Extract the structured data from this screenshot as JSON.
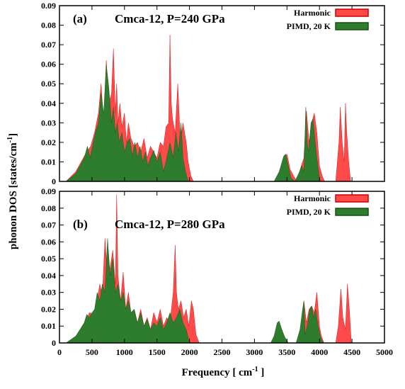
{
  "figure": {
    "ylabel": "phonon DOS [states/cm",
    "ylabel_sup": "-1",
    "ylabel_end": "]",
    "xlabel": "Frequency [ cm",
    "xlabel_sup": "-1",
    "xlabel_end": " ]"
  },
  "colors": {
    "harmonic": "#ff4a4a",
    "pimd": "#2e7d2e",
    "harmonic_edge": "#cc0000",
    "pimd_edge": "#145214"
  },
  "chart_data": [
    {
      "type": "area",
      "panel_label": "(a)",
      "title": "Cmca-12, P=240 GPa",
      "xlim": [
        0,
        5000
      ],
      "ylim": [
        0,
        0.09
      ],
      "xticks": [
        0,
        500,
        1000,
        1500,
        2000,
        2500,
        3000,
        3500,
        4000,
        4500,
        5000
      ],
      "yticks": [
        0,
        0.01,
        0.02,
        0.03,
        0.04,
        0.05,
        0.06,
        0.07,
        0.08,
        0.09
      ],
      "ytick_labels": [
        "0",
        "0.01",
        "0.02",
        "0.03",
        "0.04",
        "0.05",
        "0.06",
        "0.07",
        "0.08",
        "0.09"
      ],
      "legend_position": "top-right",
      "series": [
        {
          "name": "Harmonic",
          "x": [
            100,
            250,
            400,
            480,
            540,
            600,
            640,
            680,
            720,
            760,
            800,
            830,
            860,
            880,
            900,
            930,
            960,
            1000,
            1030,
            1060,
            1100,
            1150,
            1200,
            1250,
            1300,
            1350,
            1400,
            1450,
            1500,
            1550,
            1600,
            1640,
            1680,
            1700,
            1720,
            1740,
            1780,
            1820,
            1860,
            1900,
            1950,
            1980,
            2020,
            2060,
            3350,
            3450,
            3500,
            3550,
            3650,
            3720,
            3760,
            3800,
            3840,
            3880,
            3920,
            3960,
            4000,
            4040,
            4080,
            4250,
            4300,
            4320,
            4350,
            4380,
            4400,
            4420,
            4450,
            4480
          ],
          "values": [
            0,
            0.005,
            0.014,
            0.018,
            0.025,
            0.035,
            0.05,
            0.03,
            0.062,
            0.04,
            0.045,
            0.068,
            0.035,
            0.05,
            0.03,
            0.04,
            0.028,
            0.035,
            0.02,
            0.03,
            0.022,
            0.018,
            0.02,
            0.015,
            0.022,
            0.012,
            0.018,
            0.015,
            0.012,
            0.02,
            0.018,
            0.028,
            0.03,
            0.075,
            0.04,
            0.032,
            0.025,
            0.05,
            0.02,
            0.03,
            0.02,
            0.01,
            0.003,
            0,
            0,
            0.012,
            0.014,
            0.006,
            0,
            0.008,
            0.012,
            0.036,
            0.02,
            0.03,
            0.035,
            0.025,
            0.008,
            0.003,
            0,
            0,
            0.02,
            0.038,
            0.02,
            0.01,
            0.04,
            0.025,
            0.01,
            0
          ],
          "color": "#ff4a4a"
        },
        {
          "name": "PIMD, 20 K",
          "x": [
            100,
            250,
            380,
            430,
            470,
            520,
            560,
            600,
            640,
            680,
            720,
            760,
            800,
            830,
            860,
            890,
            920,
            960,
            1000,
            1040,
            1080,
            1120,
            1160,
            1200,
            1240,
            1280,
            1320,
            1360,
            1400,
            1450,
            1500,
            1550,
            1600,
            1650,
            1700,
            1750,
            1790,
            1830,
            1870,
            1900,
            1940,
            1980,
            3300,
            3380,
            3450,
            3480,
            3520,
            3560,
            3620,
            3680,
            3730,
            3760,
            3790,
            3810,
            3830,
            3870,
            3900,
            3920,
            3950,
            3990,
            4010
          ],
          "values": [
            0,
            0.004,
            0.012,
            0.018,
            0.012,
            0.02,
            0.026,
            0.03,
            0.045,
            0.035,
            0.06,
            0.048,
            0.03,
            0.038,
            0.025,
            0.03,
            0.02,
            0.025,
            0.015,
            0.02,
            0.022,
            0.013,
            0.02,
            0.012,
            0.018,
            0.01,
            0.015,
            0.008,
            0.012,
            0.016,
            0.01,
            0.015,
            0.005,
            0.012,
            0.02,
            0.012,
            0.025,
            0.015,
            0.03,
            0.012,
            0.005,
            0,
            0,
            0.005,
            0.013,
            0.014,
            0.008,
            0.002,
            0,
            0.004,
            0.008,
            0.005,
            0.038,
            0.02,
            0.015,
            0.03,
            0.032,
            0.025,
            0.015,
            0.004,
            0
          ],
          "color": "#2e7d2e"
        }
      ]
    },
    {
      "type": "area",
      "panel_label": "(b)",
      "title": "Cmca-12, P=280 GPa",
      "xlim": [
        0,
        5000
      ],
      "ylim": [
        0,
        0.09
      ],
      "xticks": [
        0,
        500,
        1000,
        1500,
        2000,
        2500,
        3000,
        3500,
        4000,
        4500,
        5000
      ],
      "yticks": [
        0,
        0.01,
        0.02,
        0.03,
        0.04,
        0.05,
        0.06,
        0.07,
        0.08,
        0.09
      ],
      "ytick_labels": [
        "0",
        "0.01",
        "0.02",
        "0.03",
        "0.04",
        "0.05",
        "0.06",
        "0.07",
        "0.08",
        "0.09"
      ],
      "legend_position": "top-right",
      "series": [
        {
          "name": "Harmonic",
          "x": [
            100,
            250,
            400,
            460,
            520,
            580,
            620,
            660,
            700,
            740,
            780,
            820,
            860,
            880,
            900,
            940,
            980,
            1020,
            1060,
            1100,
            1150,
            1200,
            1250,
            1300,
            1350,
            1400,
            1450,
            1500,
            1550,
            1600,
            1650,
            1700,
            1750,
            1780,
            1800,
            1830,
            1870,
            1910,
            1950,
            1990,
            2030,
            2060,
            2100,
            2150,
            3250,
            3330,
            3380,
            3420,
            3500,
            3700,
            3760,
            3800,
            3840,
            3880,
            3920,
            3960,
            4000,
            4030,
            4070,
            4250,
            4290,
            4330,
            4360,
            4400,
            4430,
            4460,
            4490
          ],
          "values": [
            0,
            0.004,
            0.012,
            0.018,
            0.017,
            0.025,
            0.035,
            0.028,
            0.062,
            0.04,
            0.045,
            0.055,
            0.035,
            0.088,
            0.04,
            0.025,
            0.042,
            0.02,
            0.03,
            0.018,
            0.02,
            0.012,
            0.02,
            0.01,
            0.015,
            0.008,
            0.018,
            0.012,
            0.02,
            0.01,
            0.015,
            0.012,
            0.03,
            0.058,
            0.03,
            0.02,
            0.025,
            0.015,
            0.02,
            0.01,
            0.025,
            0.02,
            0.005,
            0,
            0,
            0.006,
            0.012,
            0.008,
            0,
            0,
            0.025,
            0.012,
            0.02,
            0.022,
            0.018,
            0.03,
            0.01,
            0.004,
            0,
            0,
            0.01,
            0.032,
            0.015,
            0.008,
            0.035,
            0.02,
            0
          ],
          "color": "#ff4a4a"
        },
        {
          "name": "PIMD, 20 K",
          "x": [
            100,
            250,
            380,
            420,
            460,
            500,
            540,
            580,
            620,
            660,
            700,
            740,
            780,
            820,
            860,
            900,
            940,
            980,
            1020,
            1060,
            1100,
            1150,
            1200,
            1250,
            1300,
            1350,
            1400,
            1450,
            1500,
            1550,
            1600,
            1650,
            1700,
            1750,
            1800,
            1850,
            1900,
            1950,
            2000,
            3250,
            3300,
            3350,
            3380,
            3420,
            3460,
            3520,
            3640,
            3700,
            3740,
            3760,
            3780,
            3820,
            3850,
            3880,
            3910,
            3940,
            3980,
            4020,
            4060
          ],
          "values": [
            0,
            0.004,
            0.012,
            0.017,
            0.015,
            0.018,
            0.02,
            0.03,
            0.025,
            0.035,
            0.03,
            0.062,
            0.04,
            0.05,
            0.03,
            0.035,
            0.025,
            0.03,
            0.02,
            0.025,
            0.018,
            0.02,
            0.012,
            0.018,
            0.01,
            0.014,
            0.008,
            0.012,
            0.01,
            0.015,
            0.008,
            0.012,
            0.018,
            0.012,
            0.015,
            0.02,
            0.012,
            0.008,
            0,
            0,
            0.004,
            0.012,
            0.013,
            0.008,
            0.004,
            0,
            0,
            0.008,
            0.02,
            0.025,
            0.005,
            0.012,
            0.02,
            0.022,
            0.015,
            0.02,
            0.01,
            0.003,
            0
          ],
          "color": "#2e7d2e"
        }
      ]
    }
  ]
}
